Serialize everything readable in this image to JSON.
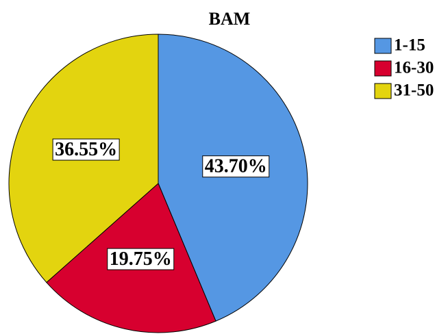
{
  "chart_data": {
    "type": "pie",
    "title": "BAM",
    "categories": [
      "1-15",
      "16-30",
      "31-50"
    ],
    "values": [
      43.7,
      19.75,
      36.55
    ],
    "value_labels": [
      "43.70%",
      "19.75%",
      "36.55%"
    ],
    "colors": [
      "#5597e3",
      "#d7002f",
      "#e3d40f"
    ],
    "legend": "top-right"
  }
}
